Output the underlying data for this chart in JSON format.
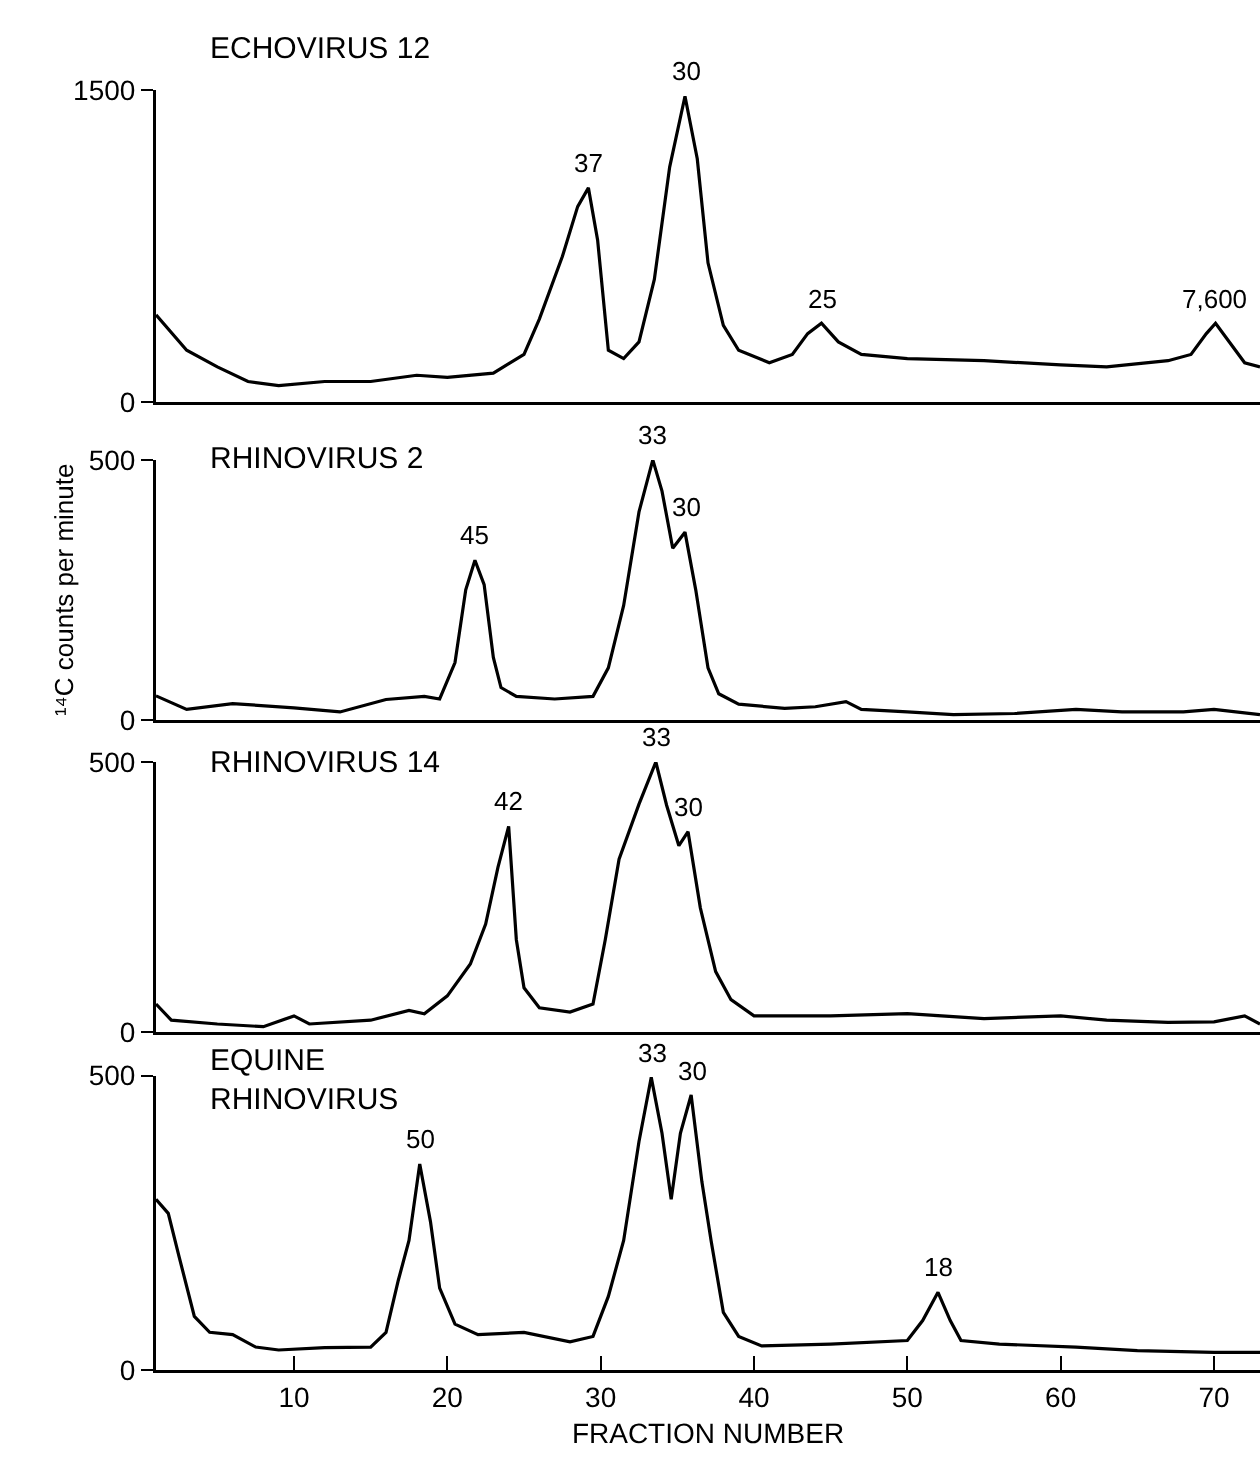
{
  "chart_data": [
    {
      "type": "line",
      "title": "ECHOVIRUS 12",
      "xlim": [
        1,
        73
      ],
      "ylim": [
        0,
        1500
      ],
      "yticks": [
        0,
        1500
      ],
      "tick_labels": "y",
      "grid": false,
      "marker": "none",
      "x": [
        1,
        3,
        5,
        7,
        9,
        12,
        15,
        18,
        20,
        23,
        25,
        26,
        27.5,
        28.5,
        29.2,
        29.8,
        30.5,
        31.5,
        32.5,
        33.5,
        34.5,
        35.5,
        36.3,
        37,
        38,
        39,
        41,
        42.5,
        43.5,
        44.4,
        45.5,
        47,
        50,
        55,
        60,
        63,
        67,
        68.5,
        69.5,
        70.1,
        71,
        72,
        73
      ],
      "series": [
        {
          "color": "#000000",
          "line_style": "solid",
          "values": [
            420,
            250,
            170,
            100,
            80,
            100,
            100,
            130,
            120,
            140,
            230,
            400,
            700,
            940,
            1030,
            780,
            250,
            210,
            290,
            590,
            1130,
            1470,
            1170,
            670,
            370,
            250,
            190,
            230,
            330,
            380,
            290,
            230,
            210,
            200,
            180,
            170,
            200,
            230,
            330,
            380,
            290,
            190,
            170
          ]
        }
      ],
      "annotations": [
        {
          "text": "37",
          "x": 29.2,
          "y": 1030
        },
        {
          "text": "30",
          "x": 35.5,
          "y": 1470
        },
        {
          "text": "25",
          "x": 44.4,
          "y": 380
        },
        {
          "text": "7,600",
          "x": 70.1,
          "y": 380
        }
      ]
    },
    {
      "type": "line",
      "title": "RHINOVIRUS 2",
      "ylabel": "¹⁴C counts per minute",
      "xlim": [
        1,
        73
      ],
      "ylim": [
        0,
        500
      ],
      "yticks": [
        0,
        500
      ],
      "tick_labels": "y",
      "grid": false,
      "marker": "none",
      "x": [
        1,
        3,
        6,
        10,
        13,
        16,
        18.5,
        19.5,
        20.5,
        21.2,
        21.8,
        22.4,
        23,
        23.5,
        24.5,
        27,
        29.5,
        30.5,
        31.5,
        32.5,
        33.4,
        34,
        34.7,
        35.5,
        36.2,
        37,
        37.7,
        39,
        42,
        44,
        46,
        47,
        50,
        53,
        57,
        61,
        64,
        68,
        70,
        73
      ],
      "series": [
        {
          "color": "#000000",
          "line_style": "solid",
          "values": [
            46,
            20,
            31,
            23,
            15,
            39,
            45,
            40,
            110,
            250,
            307,
            260,
            120,
            62,
            45,
            40,
            45,
            100,
            220,
            400,
            500,
            440,
            330,
            361,
            250,
            100,
            50,
            30,
            22,
            25,
            35,
            20,
            15,
            10,
            12,
            20,
            15,
            15,
            20,
            10
          ]
        }
      ],
      "annotations": [
        {
          "text": "45",
          "x": 21.8,
          "y": 307
        },
        {
          "text": "33",
          "x": 33.4,
          "y": 500
        },
        {
          "text": "30",
          "x": 35.5,
          "y": 361
        }
      ]
    },
    {
      "type": "line",
      "title": "RHINOVIRUS 14",
      "xlim": [
        1,
        73
      ],
      "ylim": [
        0,
        500
      ],
      "yticks": [
        0,
        500
      ],
      "tick_labels": "y",
      "grid": false,
      "marker": "none",
      "x": [
        1,
        2,
        5,
        8,
        10,
        11,
        15,
        17.5,
        18.5,
        20,
        21.5,
        22.5,
        23.3,
        24,
        24.5,
        25,
        26,
        28,
        29.5,
        30.3,
        31.2,
        32.5,
        33.6,
        34.3,
        35.1,
        35.7,
        36.5,
        37.5,
        38.5,
        40,
        45,
        50,
        55,
        60,
        63,
        67,
        70,
        72,
        73
      ],
      "series": [
        {
          "color": "#000000",
          "line_style": "solid",
          "values": [
            52,
            22,
            15,
            10,
            30,
            15,
            22,
            40,
            34,
            67,
            126,
            200,
            305,
            381,
            171,
            82,
            45,
            37,
            52,
            171,
            320,
            422,
            500,
            420,
            345,
            371,
            230,
            112,
            60,
            30,
            30,
            34,
            25,
            30,
            22,
            18,
            19,
            30,
            15
          ]
        }
      ],
      "annotations": [
        {
          "text": "42",
          "x": 24,
          "y": 381
        },
        {
          "text": "33",
          "x": 33.6,
          "y": 500
        },
        {
          "text": "30",
          "x": 35.7,
          "y": 371
        }
      ]
    },
    {
      "type": "line",
      "title": "EQUINE\nRHINOVIRUS",
      "xlabel": "FRACTION NUMBER",
      "xlim": [
        1,
        73
      ],
      "xticks": [
        10,
        20,
        30,
        40,
        50,
        60,
        70
      ],
      "ylim": [
        0,
        500
      ],
      "yticks": [
        0,
        500
      ],
      "grid": false,
      "marker": "none",
      "x": [
        1,
        1.8,
        2.5,
        3.5,
        4.5,
        6,
        7.5,
        9,
        12,
        15,
        16,
        16.8,
        17.5,
        18.2,
        18.9,
        19.5,
        20.5,
        22,
        25,
        28,
        29.5,
        30.5,
        31.5,
        32.5,
        33.3,
        34,
        34.6,
        35.2,
        35.9,
        36.6,
        37.2,
        38,
        39,
        40.5,
        45,
        50,
        51,
        52,
        52.8,
        53.5,
        56,
        61,
        65,
        70,
        73
      ],
      "series": [
        {
          "color": "#000000",
          "line_style": "solid",
          "values": [
            290,
            266,
            193,
            91,
            64,
            60,
            39,
            34,
            38,
            39,
            64,
            152,
            220,
            350,
            252,
            139,
            78,
            60,
            64,
            48,
            57,
            125,
            220,
            388,
            497,
            402,
            290,
            402,
            467,
            320,
            220,
            98,
            57,
            41,
            44,
            50,
            84,
            132,
            84,
            50,
            44,
            39,
            33,
            30,
            30
          ]
        }
      ],
      "annotations": [
        {
          "text": "50",
          "x": 18.2,
          "y": 350
        },
        {
          "text": "33",
          "x": 33.3,
          "y": 497
        },
        {
          "text": "30",
          "x": 35.9,
          "y": 467
        },
        {
          "text": "18",
          "x": 52,
          "y": 132
        }
      ]
    }
  ]
}
